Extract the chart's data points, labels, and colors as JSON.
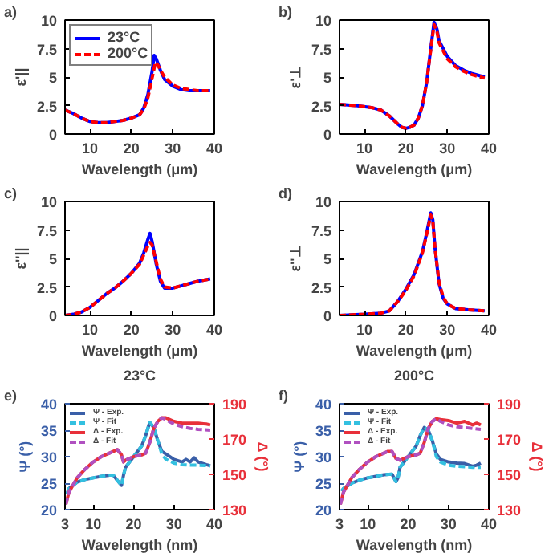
{
  "chart_data": [
    {
      "type": "line",
      "annotations": [
        "a)"
      ],
      "xlabel": "Wavelength (μm)",
      "ylabel": "ε'||",
      "xlim": [
        4,
        40
      ],
      "ylim": [
        0,
        10
      ],
      "xticks": [
        10,
        20,
        30,
        40
      ],
      "yticks": [
        0,
        2.5,
        5,
        7.5,
        10
      ],
      "legend": "top left",
      "grid": false,
      "series": [
        {
          "name": "23°C",
          "color": "#0000ff",
          "line_style": "solid",
          "x": [
            4,
            6,
            8,
            10,
            12,
            14,
            16,
            18,
            20,
            22,
            23,
            24,
            25,
            25.5,
            26,
            27,
            28,
            30,
            32,
            34,
            36,
            39
          ],
          "values": [
            2.1,
            1.8,
            1.4,
            1.1,
            1.0,
            1.0,
            1.1,
            1.2,
            1.4,
            1.7,
            2.3,
            3.5,
            5.5,
            6.9,
            6.6,
            5.6,
            4.8,
            4.2,
            3.9,
            3.8,
            3.8,
            3.8
          ]
        },
        {
          "name": "200°C",
          "color": "#ff0000",
          "line_style": "dashed",
          "x": [
            4,
            6,
            8,
            10,
            12,
            14,
            16,
            18,
            20,
            22,
            23,
            24,
            25,
            25.8,
            26.5,
            27,
            28,
            30,
            32,
            34,
            36,
            39
          ],
          "values": [
            2.1,
            1.8,
            1.4,
            1.1,
            1.0,
            1.0,
            1.1,
            1.2,
            1.4,
            1.7,
            2.2,
            3.2,
            4.9,
            6.3,
            6.0,
            5.6,
            5.0,
            4.3,
            4.0,
            3.9,
            3.8,
            3.8
          ]
        }
      ]
    },
    {
      "type": "line",
      "annotations": [
        "b)"
      ],
      "xlabel": "Wavelength (μm)",
      "ylabel": "ε'⊥",
      "xlim": [
        4,
        40
      ],
      "ylim": [
        0,
        10
      ],
      "xticks": [
        10,
        20,
        30,
        40
      ],
      "yticks": [
        0,
        2.5,
        5,
        7.5,
        10
      ],
      "grid": false,
      "series": [
        {
          "color": "#0000ff",
          "line_style": "solid",
          "x": [
            4,
            8,
            12,
            14,
            16,
            18,
            19,
            20,
            21,
            22,
            23,
            24,
            25,
            26,
            26.8,
            27.5,
            28,
            30,
            32,
            34,
            36,
            39
          ],
          "values": [
            2.6,
            2.5,
            2.3,
            2.1,
            1.6,
            0.9,
            0.6,
            0.5,
            0.6,
            0.8,
            1.4,
            2.5,
            4.5,
            7.5,
            9.8,
            9.2,
            8.2,
            6.8,
            6.0,
            5.6,
            5.3,
            5.0
          ]
        },
        {
          "color": "#ff0000",
          "line_style": "dashed",
          "x": [
            4,
            8,
            12,
            14,
            16,
            18,
            19,
            20,
            21,
            22,
            23,
            24,
            25,
            26,
            26.8,
            27.5,
            28,
            30,
            32,
            34,
            36,
            39
          ],
          "values": [
            2.6,
            2.5,
            2.3,
            2.1,
            1.6,
            0.9,
            0.6,
            0.5,
            0.6,
            0.8,
            1.4,
            2.5,
            4.5,
            7.4,
            9.6,
            9.0,
            8.0,
            6.6,
            5.9,
            5.5,
            5.2,
            4.9
          ]
        }
      ]
    },
    {
      "type": "line",
      "annotations": [
        "c)"
      ],
      "xlabel": "Wavelength (μm)",
      "ylabel": "ε''||",
      "xlim": [
        4,
        40
      ],
      "ylim": [
        0,
        10
      ],
      "xticks": [
        10,
        20,
        30,
        40
      ],
      "yticks": [
        0,
        2.5,
        5,
        7.5,
        10
      ],
      "grid": false,
      "series": [
        {
          "color": "#0000ff",
          "line_style": "solid",
          "x": [
            4,
            6,
            8,
            10,
            12,
            14,
            16,
            18,
            20,
            22,
            23,
            24,
            24.5,
            25,
            26,
            27,
            28,
            30,
            32,
            34,
            36,
            39
          ],
          "values": [
            0.0,
            0.1,
            0.3,
            0.7,
            1.3,
            1.9,
            2.4,
            3.0,
            3.7,
            4.6,
            5.5,
            6.7,
            7.2,
            6.5,
            4.5,
            3.0,
            2.4,
            2.4,
            2.6,
            2.8,
            3.0,
            3.2
          ]
        },
        {
          "color": "#ff0000",
          "line_style": "dashed",
          "x": [
            4,
            6,
            8,
            10,
            12,
            14,
            16,
            18,
            20,
            22,
            23,
            24,
            24.5,
            25,
            26,
            27,
            28,
            30,
            32,
            34,
            36,
            39
          ],
          "values": [
            0.0,
            0.1,
            0.3,
            0.7,
            1.3,
            1.9,
            2.4,
            3.0,
            3.7,
            4.5,
            5.3,
            6.1,
            6.4,
            6.2,
            4.7,
            3.2,
            2.5,
            2.4,
            2.6,
            2.8,
            3.0,
            3.2
          ]
        }
      ]
    },
    {
      "type": "line",
      "annotations": [
        "d)"
      ],
      "xlabel": "Wavelength (μm)",
      "ylabel": "ε''⊥",
      "xlim": [
        4,
        40
      ],
      "ylim": [
        0,
        10
      ],
      "xticks": [
        10,
        20,
        30,
        40
      ],
      "yticks": [
        0,
        2.5,
        5,
        7.5,
        10
      ],
      "grid": false,
      "series": [
        {
          "color": "#0000ff",
          "line_style": "solid",
          "x": [
            4,
            10,
            14,
            16,
            18,
            20,
            22,
            24,
            25,
            26,
            26.5,
            27,
            28,
            29,
            30,
            32,
            35,
            39
          ],
          "values": [
            0.0,
            0.1,
            0.2,
            0.4,
            1.2,
            2.3,
            3.6,
            5.6,
            7.2,
            9.0,
            8.4,
            6.0,
            2.8,
            1.5,
            1.0,
            0.6,
            0.5,
            0.4
          ]
        },
        {
          "color": "#ff0000",
          "line_style": "dashed",
          "x": [
            4,
            10,
            14,
            16,
            18,
            20,
            22,
            24,
            25,
            26,
            26.5,
            27,
            28,
            29,
            30,
            32,
            35,
            39
          ],
          "values": [
            0.0,
            0.1,
            0.2,
            0.4,
            1.2,
            2.2,
            3.5,
            5.5,
            7.1,
            8.8,
            8.3,
            6.0,
            2.9,
            1.6,
            1.0,
            0.6,
            0.5,
            0.4
          ]
        }
      ]
    },
    {
      "type": "line",
      "title": "23°C",
      "annotations": [
        "e)"
      ],
      "xlabel": "Wavelength (nm)",
      "ylabel": "Ψ (°)",
      "y2label": "Δ (°)",
      "xlim": [
        3,
        40
      ],
      "ylim": [
        20,
        40
      ],
      "y2lim": [
        130,
        190
      ],
      "xticks": [
        3,
        10,
        20,
        30,
        40
      ],
      "yticks": [
        20,
        25,
        30,
        35,
        40
      ],
      "y2ticks": [
        130,
        150,
        170,
        190
      ],
      "legend": "top left",
      "grid": false,
      "series": [
        {
          "name": "Ψ - Exp.",
          "color": "#3a5fa8",
          "line_style": "solid",
          "x": [
            3.5,
            4,
            6,
            8,
            10,
            12,
            14,
            15,
            16,
            17,
            17.5,
            18,
            20,
            22,
            23,
            24,
            25,
            26,
            27,
            28,
            30,
            32,
            33,
            34,
            35,
            36,
            38,
            39
          ],
          "values": [
            23,
            24,
            25.2,
            25.7,
            26.0,
            26.3,
            26.5,
            26.5,
            25.5,
            24.6,
            26.5,
            28,
            30,
            32,
            34,
            36.5,
            35.5,
            33,
            31,
            30.5,
            29.5,
            29,
            29.5,
            29,
            29.8,
            29,
            28.5,
            28.3
          ]
        },
        {
          "name": "Ψ - Fit",
          "color": "#33c0e0",
          "line_style": "dashed",
          "x": [
            3.5,
            4,
            6,
            8,
            10,
            12,
            14,
            15,
            16,
            17,
            17.5,
            18,
            20,
            22,
            23,
            24,
            25,
            26,
            27,
            28,
            30,
            32,
            34,
            36,
            39
          ],
          "values": [
            23,
            24,
            25.2,
            25.7,
            26.0,
            26.3,
            26.5,
            26.5,
            25.5,
            24.6,
            26.5,
            28,
            30,
            32,
            34,
            36.5,
            35.5,
            33,
            30.5,
            29.5,
            28.8,
            28.5,
            28.4,
            28.4,
            28.3
          ]
        },
        {
          "name": "Δ - Exp.",
          "color": "#e8303a",
          "line_style": "solid",
          "axis": "y2",
          "x": [
            3.2,
            4,
            6,
            8,
            10,
            12,
            14,
            15,
            16,
            17,
            17.5,
            18,
            20,
            22,
            23,
            24,
            25,
            26,
            27,
            28,
            30,
            32,
            34,
            36,
            38,
            39
          ],
          "values": [
            133,
            140,
            148,
            153,
            157,
            160,
            162,
            163,
            164,
            161,
            157,
            158,
            160,
            161,
            162,
            168,
            176,
            180,
            182,
            182,
            180,
            179,
            179,
            179,
            178.5,
            178
          ]
        },
        {
          "name": "Δ - Fit",
          "color": "#b050c0",
          "line_style": "dashed",
          "axis": "y2",
          "x": [
            3.2,
            4,
            6,
            8,
            10,
            12,
            14,
            15,
            16,
            17,
            17.5,
            18,
            20,
            22,
            23,
            24,
            25,
            26,
            27,
            28,
            30,
            32,
            34,
            36,
            39
          ],
          "values": [
            133,
            140,
            148,
            153,
            157,
            160,
            162,
            163,
            164,
            161,
            157,
            158,
            160,
            161,
            162,
            168,
            176,
            180,
            182,
            181,
            178.5,
            177,
            176,
            175.5,
            175
          ]
        }
      ]
    },
    {
      "type": "line",
      "title": "200°C",
      "annotations": [
        "f)"
      ],
      "xlabel": "Wavelength (nm)",
      "ylabel": "Ψ (°)",
      "y2label": "Δ (°)",
      "xlim": [
        3,
        40
      ],
      "ylim": [
        20,
        40
      ],
      "y2lim": [
        130,
        190
      ],
      "xticks": [
        3,
        10,
        20,
        30,
        40
      ],
      "yticks": [
        20,
        25,
        30,
        35,
        40
      ],
      "y2ticks": [
        130,
        150,
        170,
        190
      ],
      "legend": "top left",
      "grid": false,
      "series": [
        {
          "name": "Ψ - Exp.",
          "color": "#3a5fa8",
          "line_style": "solid",
          "x": [
            3.5,
            4,
            6,
            8,
            10,
            12,
            14,
            16,
            17,
            17.5,
            18,
            20,
            22,
            23,
            24,
            25,
            26,
            27,
            28,
            30,
            32,
            34,
            36,
            37,
            38
          ],
          "values": [
            23.5,
            24,
            25,
            25.6,
            26,
            26.3,
            26.6,
            26.7,
            25.3,
            26,
            28,
            30,
            32,
            34,
            35.5,
            35,
            33,
            30.5,
            29.5,
            29,
            28.8,
            28.7,
            28.2,
            28.4,
            28.8
          ]
        },
        {
          "name": "Ψ - Fit",
          "color": "#33c0e0",
          "line_style": "dashed",
          "x": [
            3.5,
            4,
            6,
            8,
            10,
            12,
            14,
            16,
            17,
            17.5,
            18,
            20,
            22,
            23,
            24,
            25,
            26,
            27,
            28,
            30,
            32,
            34,
            36,
            38
          ],
          "values": [
            23.5,
            24,
            25,
            25.6,
            26,
            26.3,
            26.6,
            26.7,
            25.3,
            26,
            28,
            30,
            32,
            34,
            35.5,
            35,
            33,
            30,
            29,
            28.4,
            28.2,
            28.1,
            28,
            28
          ]
        },
        {
          "name": "Δ - Exp.",
          "color": "#e8303a",
          "line_style": "solid",
          "axis": "y2",
          "x": [
            3.2,
            4,
            6,
            8,
            10,
            12,
            14,
            15,
            16,
            17,
            18,
            20,
            22,
            23,
            24,
            25,
            26,
            27,
            28,
            30,
            32,
            34,
            36,
            37,
            38
          ],
          "values": [
            133,
            140,
            148,
            153,
            157,
            160,
            162,
            163,
            163,
            159,
            158,
            160,
            161,
            162,
            168,
            176,
            180,
            181.5,
            181,
            180.5,
            179,
            180,
            178,
            179,
            178
          ]
        },
        {
          "name": "Δ - Fit",
          "color": "#b050c0",
          "line_style": "dashed",
          "axis": "y2",
          "x": [
            3.2,
            4,
            6,
            8,
            10,
            12,
            14,
            15,
            16,
            17,
            18,
            20,
            22,
            23,
            24,
            25,
            26,
            27,
            28,
            30,
            32,
            34,
            36,
            38
          ],
          "values": [
            133,
            140,
            148,
            153,
            157,
            160,
            162,
            163,
            163,
            159,
            158,
            160,
            161,
            162,
            168,
            176,
            180,
            181.5,
            180,
            178,
            177,
            176.5,
            176,
            175.5
          ]
        }
      ]
    }
  ]
}
